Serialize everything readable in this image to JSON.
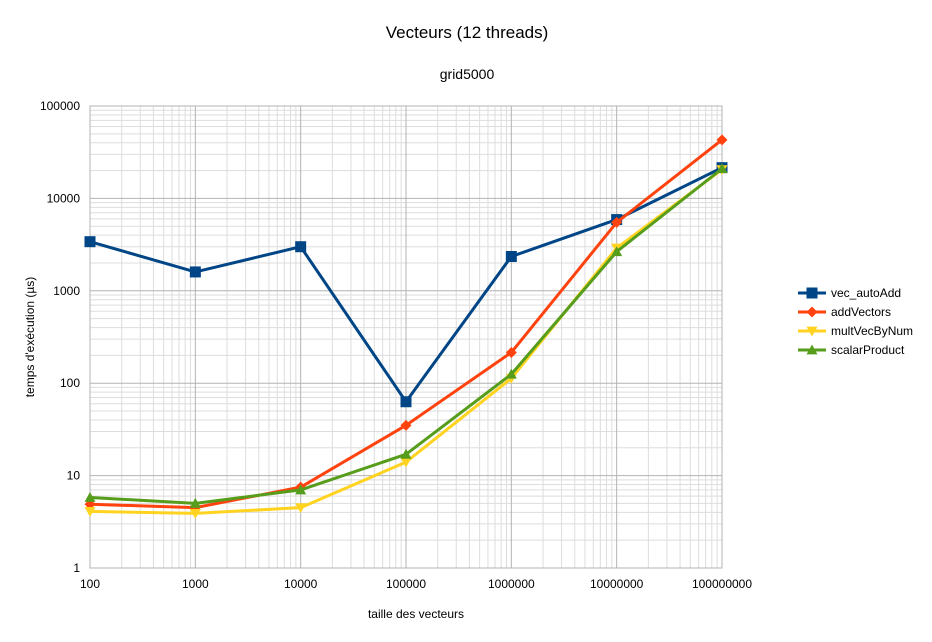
{
  "chart_data": {
    "type": "line",
    "title": "Vecteurs (12 threads)",
    "subtitle": "grid5000",
    "xlabel": "taille des vecteurs",
    "ylabel": "temps d'exécution (µs)",
    "x_scale": "log",
    "y_scale": "log",
    "xlim": [
      100,
      100000000
    ],
    "ylim": [
      1,
      100000
    ],
    "x": [
      100,
      1000,
      10000,
      100000,
      1000000,
      10000000,
      100000000
    ],
    "x_tick_labels": [
      "100",
      "1000",
      "10000",
      "100000",
      "1000000",
      "10000000",
      "100000000"
    ],
    "y_tick_labels": [
      "1",
      "10",
      "100",
      "1000",
      "10000",
      "100000"
    ],
    "grid": true,
    "legend_position": "right",
    "series": [
      {
        "name": "vec_autoAdd",
        "color": "#004586",
        "marker": "square",
        "values": [
          3400,
          1600,
          3000,
          63,
          2350,
          5900,
          21500
        ]
      },
      {
        "name": "addVectors",
        "color": "#ff420e",
        "marker": "diamond",
        "values": [
          4.9,
          4.5,
          7.5,
          35,
          215,
          5500,
          43000
        ]
      },
      {
        "name": "multVecByNum",
        "color": "#ffd320",
        "marker": "triangle-down",
        "values": [
          4.1,
          3.9,
          4.5,
          14,
          113,
          2900,
          20500
        ]
      },
      {
        "name": "scalarProduct",
        "color": "#579d1c",
        "marker": "triangle-up",
        "values": [
          5.8,
          5.0,
          7.0,
          17,
          125,
          2650,
          21000
        ]
      }
    ]
  }
}
